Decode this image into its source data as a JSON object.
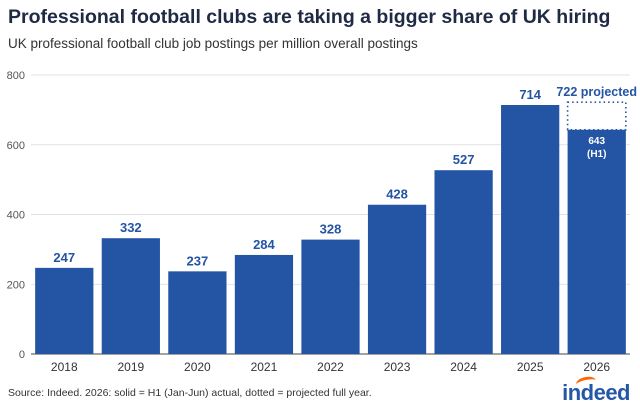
{
  "title": "Professional football clubs are taking a bigger share of UK hiring",
  "subtitle": "UK professional football club job postings per million overall postings",
  "source": "Source: Indeed. 2026: solid = H1 (Jan-Jun) actual, dotted = projected full year.",
  "logo": "indeed",
  "colors": {
    "bar": "#2454a4",
    "label": "#2454a4",
    "axis": "#555555",
    "logo_accent": "#ff6600"
  },
  "chart_data": {
    "type": "bar",
    "categories": [
      "2018",
      "2019",
      "2020",
      "2021",
      "2022",
      "2023",
      "2024",
      "2025",
      "2026"
    ],
    "values": [
      247,
      332,
      237,
      284,
      328,
      428,
      527,
      714,
      643
    ],
    "data_labels": [
      "247",
      "332",
      "237",
      "284",
      "328",
      "428",
      "527",
      "714",
      "643"
    ],
    "inside_sublabel_last": "(H1)",
    "projected": {
      "category": "2026",
      "value": 722,
      "label": "722 projected",
      "style": "dotted"
    },
    "ylim": [
      0,
      800
    ],
    "yticks": [
      0,
      200,
      400,
      600,
      800
    ],
    "ytick_labels": [
      "0",
      "200",
      "400",
      "600",
      "800"
    ],
    "grid": true,
    "legend": "none"
  }
}
